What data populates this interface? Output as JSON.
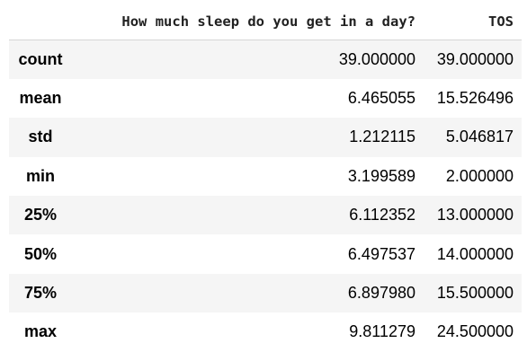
{
  "table": {
    "columns": [
      "",
      "How much sleep do you get in a day?",
      "TOS"
    ],
    "rows": [
      {
        "label": "count",
        "values": [
          "39.000000",
          "39.000000"
        ]
      },
      {
        "label": "mean",
        "values": [
          "6.465055",
          "15.526496"
        ]
      },
      {
        "label": "std",
        "values": [
          "1.212115",
          "5.046817"
        ]
      },
      {
        "label": "min",
        "values": [
          "3.199589",
          "2.000000"
        ]
      },
      {
        "label": "25%",
        "values": [
          "6.112352",
          "13.000000"
        ]
      },
      {
        "label": "50%",
        "values": [
          "6.497537",
          "14.000000"
        ]
      },
      {
        "label": "75%",
        "values": [
          "6.897980",
          "15.500000"
        ]
      },
      {
        "label": "max",
        "values": [
          "9.811279",
          "24.500000"
        ]
      }
    ]
  }
}
